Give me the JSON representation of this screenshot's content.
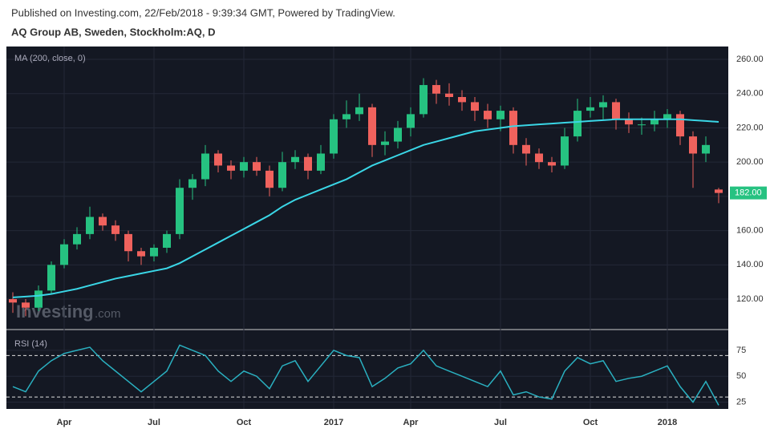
{
  "header": {
    "published": "Published on Investing.com, 22/Feb/2018 - 9:39:34 GMT, Powered by TradingView.",
    "instrument": "AQ Group AB, Sweden, Stockholm:AQ, D",
    "watermark": "Investing",
    "watermark_suffix": ".com"
  },
  "chart_data": [
    {
      "type": "candlestick",
      "categories": [
        null,
        null,
        null,
        null,
        "Apr",
        null,
        null,
        null,
        null,
        null,
        null,
        "Jul",
        null,
        null,
        null,
        null,
        null,
        null,
        "Oct",
        null,
        null,
        null,
        null,
        null,
        null,
        "2017",
        null,
        null,
        null,
        null,
        null,
        "Apr",
        null,
        null,
        null,
        null,
        null,
        null,
        "Jul",
        null,
        null,
        null,
        null,
        null,
        null,
        "Oct",
        null,
        null,
        null,
        null,
        null,
        "2018",
        null,
        null,
        null,
        null
      ],
      "open": [
        120,
        118,
        115,
        125,
        140,
        152,
        158,
        168,
        163,
        158,
        148,
        145,
        150,
        158,
        185,
        190,
        205,
        198,
        195,
        200,
        195,
        185,
        200,
        203,
        195,
        205,
        225,
        228,
        232,
        210,
        212,
        220,
        228,
        245,
        240,
        238,
        235,
        230,
        225,
        230,
        210,
        205,
        200,
        198,
        215,
        230,
        232,
        235,
        225,
        222,
        222,
        225,
        228,
        215,
        205,
        184
      ],
      "high": [
        124,
        120,
        128,
        142,
        155,
        162,
        174,
        170,
        166,
        160,
        150,
        152,
        160,
        190,
        193,
        210,
        207,
        201,
        203,
        203,
        198,
        206,
        207,
        205,
        210,
        228,
        236,
        240,
        234,
        218,
        224,
        232,
        249,
        248,
        246,
        242,
        238,
        234,
        233,
        232,
        214,
        208,
        203,
        220,
        237,
        238,
        239,
        237,
        229,
        226,
        230,
        231,
        230,
        218,
        215,
        185
      ],
      "low": [
        112,
        110,
        113,
        123,
        138,
        149,
        155,
        160,
        154,
        142,
        140,
        142,
        147,
        155,
        178,
        186,
        194,
        190,
        191,
        192,
        180,
        183,
        196,
        190,
        193,
        202,
        220,
        224,
        203,
        204,
        208,
        215,
        226,
        234,
        233,
        230,
        224,
        220,
        218,
        205,
        198,
        196,
        194,
        196,
        212,
        226,
        225,
        219,
        217,
        216,
        218,
        220,
        210,
        185,
        200,
        176
      ],
      "close": [
        118,
        115,
        125,
        140,
        152,
        158,
        168,
        163,
        158,
        148,
        145,
        150,
        158,
        185,
        190,
        205,
        198,
        195,
        200,
        195,
        185,
        200,
        203,
        195,
        205,
        225,
        228,
        232,
        210,
        212,
        220,
        228,
        245,
        240,
        238,
        235,
        230,
        225,
        230,
        210,
        205,
        200,
        198,
        215,
        230,
        232,
        235,
        225,
        222,
        222,
        225,
        228,
        215,
        205,
        210,
        182
      ],
      "up_color": "#26c281",
      "down_color": "#f0625d",
      "last_label": "182.00",
      "series": [
        {
          "name": "MA (200, close, 0)",
          "color": "#3ad6e6",
          "values": [
            121,
            121.5,
            122,
            123,
            124.5,
            126,
            128,
            130,
            132,
            133.5,
            135,
            136.5,
            138,
            141,
            145,
            149,
            153,
            157,
            161,
            165,
            169,
            174,
            178,
            181,
            184,
            187,
            190,
            194,
            198,
            201,
            204,
            207,
            210,
            212,
            214,
            216,
            218,
            219,
            220,
            221,
            221.5,
            222,
            222.5,
            223,
            223.5,
            224,
            224.5,
            225,
            225,
            225,
            225,
            225,
            225,
            224.5,
            224,
            223.5
          ]
        }
      ],
      "ylim": [
        102.7,
        267.5
      ],
      "yticks": [
        {
          "value": 120,
          "label": "120.00"
        },
        {
          "value": 140,
          "label": "140.00"
        },
        {
          "value": 160,
          "label": "160.00"
        },
        {
          "value": 180,
          "label": "180.00"
        },
        {
          "value": 200,
          "label": "200.00"
        },
        {
          "value": 220,
          "label": "220.00"
        },
        {
          "value": 240,
          "label": "240.00"
        },
        {
          "value": 260,
          "label": "260.00"
        }
      ],
      "grid": true
    },
    {
      "type": "line",
      "name": "RSI (14)",
      "color": "#2ab0c0",
      "values": [
        40,
        35,
        55,
        65,
        72,
        75,
        78,
        65,
        55,
        45,
        35,
        45,
        55,
        80,
        75,
        70,
        55,
        45,
        55,
        50,
        38,
        60,
        65,
        45,
        60,
        75,
        70,
        68,
        40,
        48,
        58,
        62,
        75,
        60,
        55,
        50,
        45,
        40,
        55,
        32,
        35,
        30,
        28,
        55,
        68,
        62,
        65,
        45,
        48,
        50,
        55,
        60,
        40,
        25,
        45,
        22
      ],
      "levels": [
        30,
        70
      ],
      "ylim": [
        20,
        93.5
      ],
      "yticks": [
        25,
        50,
        75
      ],
      "grid": true
    }
  ]
}
